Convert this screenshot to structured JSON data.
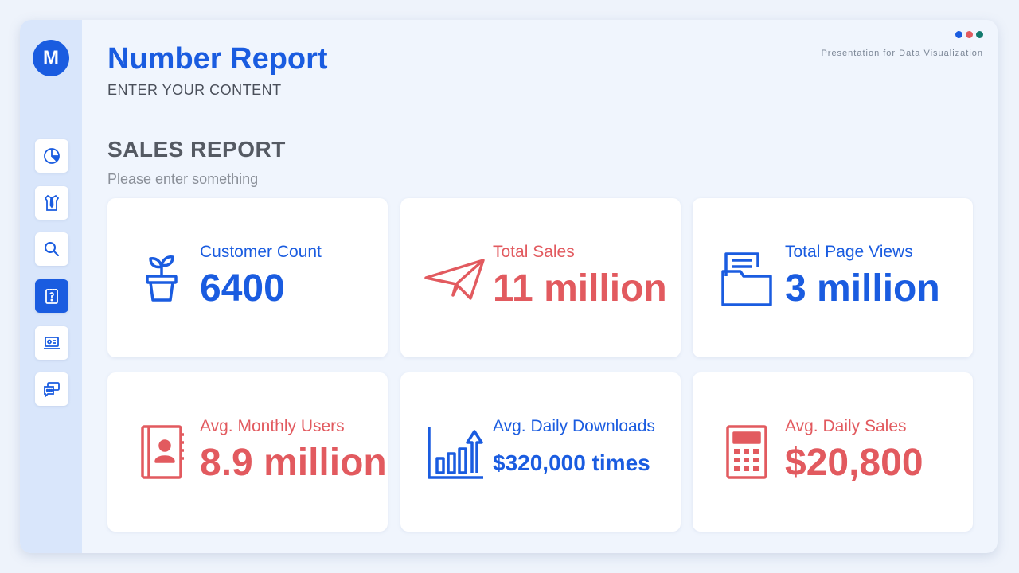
{
  "header": {
    "logo_letter": "M",
    "title": "Number Report",
    "tagline": "ENTER YOUR CONTENT",
    "presentation_label": "Presentation for Data Visualization",
    "dot_colors": [
      "#1a5ce0",
      "#e25a5f",
      "#137a6e"
    ]
  },
  "section": {
    "title": "SALES REPORT",
    "subtitle": "Please enter something"
  },
  "sidebar": {
    "items": [
      {
        "icon": "pie-chart-icon"
      },
      {
        "icon": "shirt-tie-icon"
      },
      {
        "icon": "search-icon"
      },
      {
        "icon": "clipboard-question-icon",
        "active": true
      },
      {
        "icon": "id-card-laptop-icon"
      },
      {
        "icon": "chat-bubbles-icon"
      }
    ]
  },
  "cards": [
    {
      "label": "Customer Count",
      "value": "6400",
      "icon": "plant-pot-icon",
      "color": "#1a5ce0"
    },
    {
      "label": "Total Sales",
      "value": "11 million",
      "icon": "paper-plane-icon",
      "color": "#e25a5f"
    },
    {
      "label": "Total Page Views",
      "value": "3 million",
      "icon": "folder-document-icon",
      "color": "#1a5ce0"
    },
    {
      "label": "Avg. Monthly Users",
      "value": "8.9 million",
      "icon": "contact-book-icon",
      "color": "#e25a5f"
    },
    {
      "label": "Avg. Daily Downloads",
      "value": "$320,000 times",
      "icon": "bar-chart-arrow-icon",
      "color": "#1a5ce0"
    },
    {
      "label": "Avg. Daily Sales",
      "value": "$20,800",
      "icon": "calculator-icon",
      "color": "#e25a5f"
    }
  ]
}
